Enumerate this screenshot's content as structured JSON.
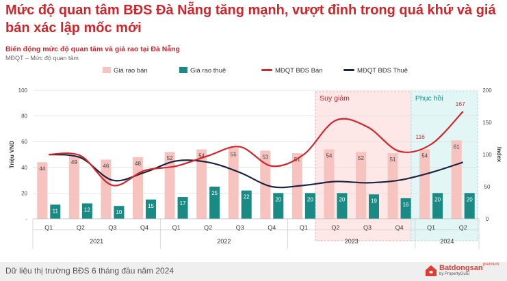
{
  "headline": "Mức độ quan tâm BĐS Đà Nẵng tăng mạnh, vượt đỉnh trong quá khứ và giá bán xác lập mốc mới",
  "chart_data": {
    "type": "bar",
    "title": "Biến động mức độ quan tâm và giá rao tại Đà Nẵng",
    "subtitle": "MĐQT – Mức độ quan tâm",
    "ylabel": "Triệu VND",
    "y2label": "Index",
    "ylim": [
      0,
      100
    ],
    "y2lim": [
      0,
      200
    ],
    "yticks": [
      "-",
      "20",
      "40",
      "60",
      "80",
      "100"
    ],
    "y2ticks": [
      "0",
      "50",
      "100",
      "150",
      "200"
    ],
    "categories": [
      "Q1",
      "Q2",
      "Q3",
      "Q4",
      "Q1",
      "Q2",
      "Q3",
      "Q4",
      "Q1",
      "Q2",
      "Q3",
      "Q4",
      "Q1",
      "Q2"
    ],
    "years": [
      {
        "label": "2021",
        "start": 0,
        "end": 3
      },
      {
        "label": "2022",
        "start": 4,
        "end": 7
      },
      {
        "label": "2023",
        "start": 8,
        "end": 11
      },
      {
        "label": "2024",
        "start": 12,
        "end": 13
      }
    ],
    "series": [
      {
        "name": "Giá rao bán",
        "kind": "bar",
        "color": "#f7c3bf",
        "values": [
          44,
          49,
          46,
          48,
          52,
          54,
          55,
          53,
          51,
          54,
          52,
          51,
          54,
          61
        ]
      },
      {
        "name": "Giá rao thuê",
        "kind": "bar",
        "color": "#1a8a84",
        "values": [
          11,
          12,
          10,
          15,
          17,
          25,
          22,
          20,
          20,
          20,
          19,
          16,
          20,
          20
        ]
      },
      {
        "name": "MĐQT BĐS Bán",
        "kind": "line",
        "axis": "right",
        "color": "#d3242a",
        "values": [
          100,
          98,
          52,
          75,
          82,
          98,
          112,
          82,
          100,
          153,
          143,
          105,
          116,
          167
        ],
        "labels": [
          {
            "index": 12,
            "text": "116"
          },
          {
            "index": 13,
            "text": "167"
          }
        ]
      },
      {
        "name": "MĐQT BĐS Thuê",
        "kind": "line",
        "axis": "right",
        "color": "#1c2340",
        "values": [
          100,
          95,
          60,
          72,
          90,
          88,
          72,
          50,
          52,
          58,
          56,
          60,
          72,
          88
        ]
      }
    ],
    "annotations": [
      {
        "label": "Suy giảm",
        "start": 9,
        "end": 11,
        "color": "#fde8e7",
        "border": "#f2a6a2",
        "text_color": "#d3242a"
      },
      {
        "label": "Phục hồi",
        "start": 12,
        "end": 13,
        "color": "#e3f6f6",
        "border": "#9fdbd9",
        "text_color": "#1a8a84"
      }
    ],
    "grid": true,
    "legend": "top"
  },
  "footer": {
    "text": "Dữ liệu thị trường BĐS 6 tháng đầu năm 2024",
    "logo": "Batdongsan",
    "logo_sub": "by PropertyGuru",
    "logo_premium": "premium"
  }
}
